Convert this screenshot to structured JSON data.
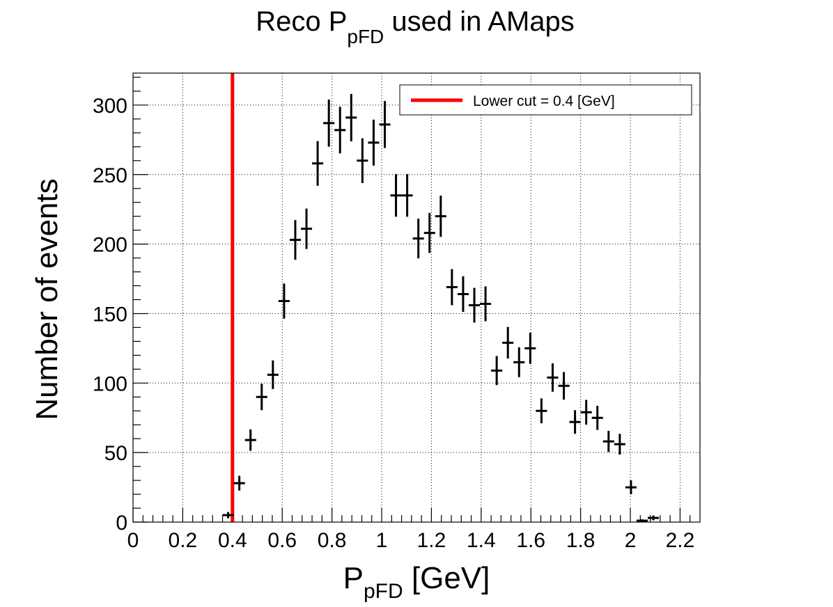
{
  "chart_data": {
    "type": "scatter",
    "title_main": "Reco P",
    "title_sub": "pFD",
    "title_rest": " used in AMaps",
    "xlabel_main": "P",
    "xlabel_sub": "pFD",
    "xlabel_rest": " [GeV]",
    "ylabel": "Number of events",
    "xlim": [
      0,
      2.28
    ],
    "ylim": [
      0,
      323
    ],
    "grid": true,
    "legend_position": "top-right",
    "x_ticks": [
      {
        "value": 0,
        "label": "0"
      },
      {
        "value": 0.2,
        "label": "0.2"
      },
      {
        "value": 0.4,
        "label": "0.4"
      },
      {
        "value": 0.6,
        "label": "0.6"
      },
      {
        "value": 0.8,
        "label": "0.8"
      },
      {
        "value": 1.0,
        "label": "1"
      },
      {
        "value": 1.2,
        "label": "1.2"
      },
      {
        "value": 1.4,
        "label": "1.4"
      },
      {
        "value": 1.6,
        "label": "1.6"
      },
      {
        "value": 1.8,
        "label": "1.8"
      },
      {
        "value": 2.0,
        "label": "2"
      },
      {
        "value": 2.2,
        "label": "2.2"
      }
    ],
    "y_ticks": [
      {
        "value": 0,
        "label": "0"
      },
      {
        "value": 50,
        "label": "50"
      },
      {
        "value": 100,
        "label": "100"
      },
      {
        "value": 150,
        "label": "150"
      },
      {
        "value": 200,
        "label": "200"
      },
      {
        "value": 250,
        "label": "250"
      },
      {
        "value": 300,
        "label": "300"
      }
    ],
    "cut_line": {
      "x": 0.4,
      "color": "#ff0000"
    },
    "legend_label": "Lower cut = 0.4 [GeV]",
    "series": [
      {
        "color": "#000000",
        "bin_half_width": 0.0225,
        "points": [
          {
            "x": 0.3825,
            "y": 5
          },
          {
            "x": 0.4275,
            "y": 28
          },
          {
            "x": 0.4725,
            "y": 59
          },
          {
            "x": 0.5175,
            "y": 90
          },
          {
            "x": 0.5625,
            "y": 106
          },
          {
            "x": 0.6075,
            "y": 159
          },
          {
            "x": 0.6525,
            "y": 203
          },
          {
            "x": 0.6975,
            "y": 211
          },
          {
            "x": 0.7425,
            "y": 258
          },
          {
            "x": 0.7875,
            "y": 287
          },
          {
            "x": 0.8325,
            "y": 282
          },
          {
            "x": 0.8775,
            "y": 291
          },
          {
            "x": 0.9225,
            "y": 260
          },
          {
            "x": 0.9675,
            "y": 273
          },
          {
            "x": 1.0125,
            "y": 286
          },
          {
            "x": 1.0575,
            "y": 235
          },
          {
            "x": 1.1025,
            "y": 235
          },
          {
            "x": 1.1475,
            "y": 204
          },
          {
            "x": 1.1925,
            "y": 208
          },
          {
            "x": 1.2375,
            "y": 220
          },
          {
            "x": 1.2825,
            "y": 169
          },
          {
            "x": 1.3275,
            "y": 164
          },
          {
            "x": 1.3725,
            "y": 156
          },
          {
            "x": 1.4175,
            "y": 157
          },
          {
            "x": 1.4625,
            "y": 109
          },
          {
            "x": 1.5075,
            "y": 129
          },
          {
            "x": 1.5525,
            "y": 115
          },
          {
            "x": 1.5975,
            "y": 125
          },
          {
            "x": 1.6425,
            "y": 80
          },
          {
            "x": 1.6875,
            "y": 104
          },
          {
            "x": 1.7325,
            "y": 98
          },
          {
            "x": 1.7775,
            "y": 72
          },
          {
            "x": 1.8225,
            "y": 79
          },
          {
            "x": 1.8675,
            "y": 75
          },
          {
            "x": 1.9125,
            "y": 58
          },
          {
            "x": 1.9575,
            "y": 56
          },
          {
            "x": 2.0025,
            "y": 25
          },
          {
            "x": 2.0475,
            "y": 1
          },
          {
            "x": 2.0925,
            "y": 3
          }
        ]
      }
    ]
  }
}
